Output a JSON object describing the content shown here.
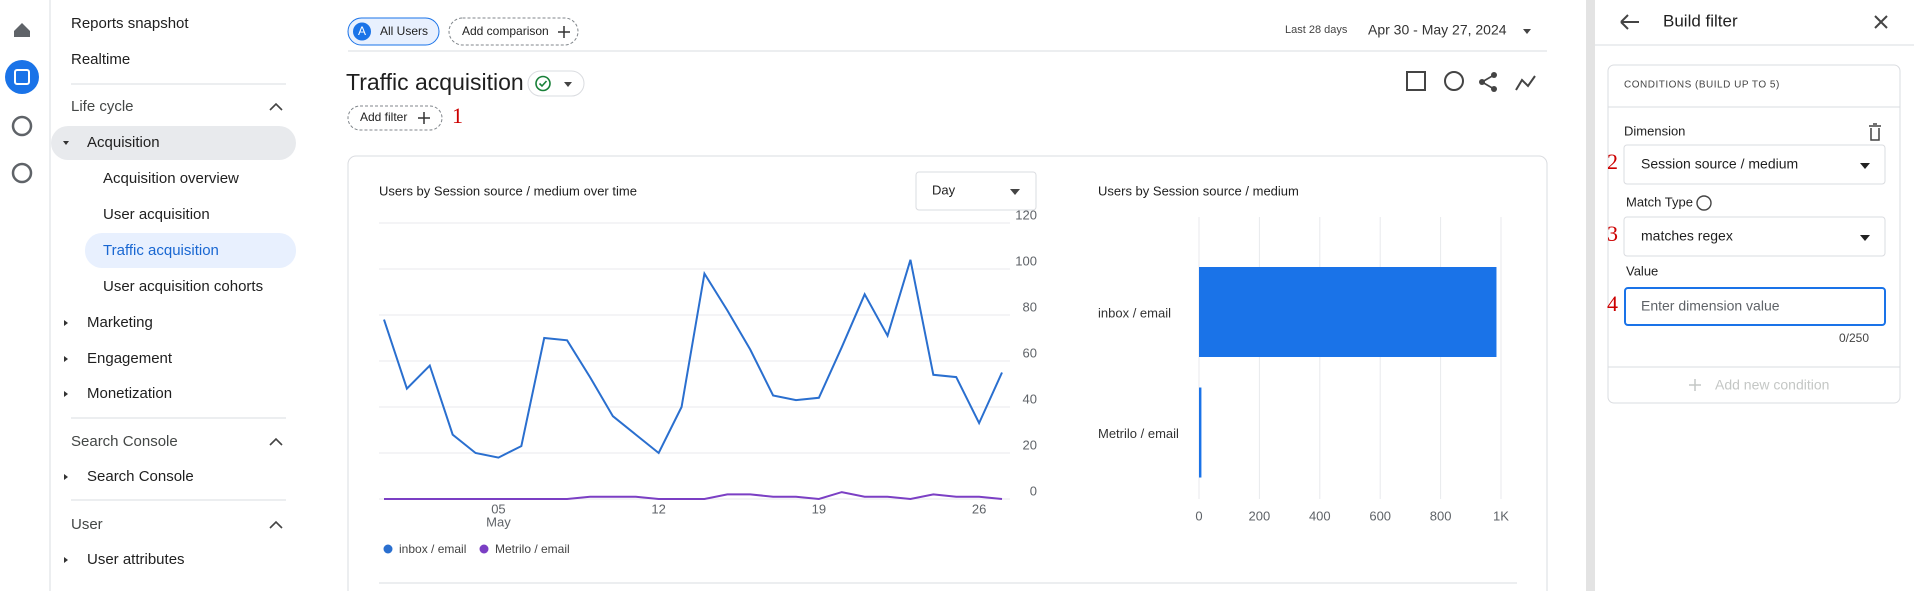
{
  "nav": {
    "top": [
      "Reports snapshot",
      "Realtime"
    ],
    "sections": [
      {
        "title": "Life cycle",
        "items": [
          {
            "label": "Acquisition",
            "children": [
              "Acquisition overview",
              "User acquisition",
              "Traffic acquisition",
              "User acquisition cohorts"
            ]
          },
          {
            "label": "Marketing"
          },
          {
            "label": "Engagement"
          },
          {
            "label": "Monetization"
          }
        ]
      },
      {
        "title": "Search Console",
        "items": [
          {
            "label": "Search Console"
          }
        ]
      },
      {
        "title": "User",
        "items": [
          {
            "label": "User attributes"
          }
        ]
      }
    ]
  },
  "header": {
    "comparison": {
      "badge": "A",
      "label": "All Users"
    },
    "add_comparison": "Add comparison",
    "date_label": "Last 28 days",
    "date_range": "Apr 30 - May 27, 2024"
  },
  "report": {
    "title": "Traffic acquisition",
    "add_filter": "Add filter"
  },
  "annotations": [
    "1",
    "2",
    "3",
    "4"
  ],
  "charts": [
    {
      "type": "line",
      "title": "Users by Session source / medium over time",
      "interval": "Day",
      "categories": [
        null,
        null,
        null,
        null,
        null,
        "05",
        null,
        null,
        null,
        null,
        null,
        null,
        "12",
        null,
        null,
        null,
        null,
        null,
        null,
        "19",
        null,
        null,
        null,
        null,
        null,
        null,
        "26",
        null
      ],
      "x_month_label": "May",
      "ylim": [
        0,
        120
      ],
      "yticks": [
        0,
        20,
        40,
        60,
        80,
        100,
        120
      ],
      "grid": true,
      "y_axis_side": "right",
      "series": [
        {
          "name": "inbox / email",
          "color": "#2a6fcf",
          "values": [
            78,
            48,
            58,
            28,
            20,
            18,
            23,
            70,
            69,
            53,
            36,
            28,
            20,
            40,
            98,
            82,
            65,
            45,
            43,
            44,
            66,
            89,
            71,
            104,
            54,
            53,
            33,
            55
          ]
        },
        {
          "name": "Metrilo / email",
          "color": "#7b3fc4",
          "values": [
            0,
            0,
            0,
            0,
            0,
            0,
            0,
            0,
            0,
            1,
            1,
            1,
            0,
            0,
            0,
            2,
            2,
            1,
            1,
            0,
            3,
            1,
            1,
            0,
            2,
            1,
            1,
            0
          ]
        }
      ]
    },
    {
      "type": "bar",
      "orientation": "horizontal",
      "title": "Users by Session source / medium",
      "categories": [
        "inbox / email",
        "Metrilo / email"
      ],
      "values": [
        985,
        8
      ],
      "color": "#1a73e8",
      "xlim": [
        0,
        1000
      ],
      "xticks": [
        0,
        200,
        400,
        600,
        800,
        {
          "value": 1000,
          "label": "1K"
        }
      ],
      "grid": true
    }
  ],
  "filter_panel": {
    "title": "Build filter",
    "conditions_label": "CONDITIONS (BUILD UP TO 5)",
    "dimension_label": "Dimension",
    "dimension_value": "Session source / medium",
    "match_type_label": "Match Type",
    "match_type_value": "matches regex",
    "value_label": "Value",
    "value_placeholder": "Enter dimension value",
    "counter": "0/250",
    "add_condition": "Add new condition"
  }
}
